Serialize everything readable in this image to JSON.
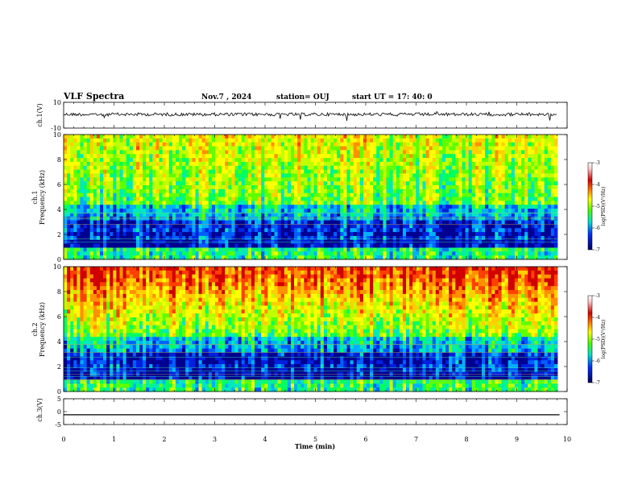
{
  "header": {
    "title": "VLF Spectra",
    "date": "Nov.7 , 2024",
    "station": "station= OUJ",
    "start": "start UT = 17: 40: 0"
  },
  "colors": {
    "colormap": [
      "#ffffff",
      "#ffd0d0",
      "#d00000",
      "#ff7000",
      "#ffff00",
      "#60ff00",
      "#00e0c0",
      "#0040ff",
      "#000080"
    ],
    "trace": "#000000"
  },
  "chart_data": [
    {
      "type": "line",
      "panel": "ch.1",
      "ylabel": "ch.1(V)",
      "ylim": [
        -10,
        10
      ],
      "yticks": [
        "10",
        "-10"
      ],
      "xlim": [
        0,
        10
      ],
      "series": [
        {
          "x": [
            0,
            10
          ],
          "y": [
            0,
            0
          ]
        }
      ]
    },
    {
      "type": "heatmap",
      "panel": "ch.1 spectrogram",
      "ylabel_lines": [
        "ch.1",
        "Frequency (kHz)"
      ],
      "ylim": [
        0,
        10
      ],
      "yticks": [
        "0",
        "2",
        "4",
        "6",
        "8",
        "10"
      ],
      "xlim": [
        0,
        10
      ],
      "colorbar": {
        "label": "log(PSD)(V²/Hz)",
        "range": [
          -7,
          -3
        ],
        "ticks": [
          "-3",
          "-4",
          "-5",
          "-6",
          "-7"
        ]
      }
    },
    {
      "type": "heatmap",
      "panel": "ch.2 spectrogram",
      "ylabel_lines": [
        "ch.2",
        "Frequency (kHz)"
      ],
      "ylim": [
        0,
        10
      ],
      "yticks": [
        "0",
        "2",
        "4",
        "6",
        "8",
        "10"
      ],
      "xlim": [
        0,
        10
      ],
      "colorbar": {
        "label": "log(PSD)(V²/Hz)",
        "range": [
          -7,
          -3
        ],
        "ticks": [
          "-3",
          "-4",
          "-5",
          "-6",
          "-7"
        ]
      }
    },
    {
      "type": "line",
      "panel": "ch.3",
      "ylabel": "ch.3(V)",
      "ylim": [
        -5,
        5
      ],
      "yticks": [
        "5",
        "0",
        "-5"
      ],
      "xlim": [
        0,
        9.85
      ],
      "series": [
        {
          "x": [
            0,
            9.85
          ],
          "y": [
            -1.2,
            -1.2
          ]
        }
      ]
    }
  ],
  "xaxis": {
    "label": "Time (min)",
    "ticks": [
      "0",
      "1",
      "2",
      "3",
      "4",
      "5",
      "6",
      "7",
      "8",
      "9",
      "10"
    ],
    "range": [
      0,
      10
    ]
  }
}
